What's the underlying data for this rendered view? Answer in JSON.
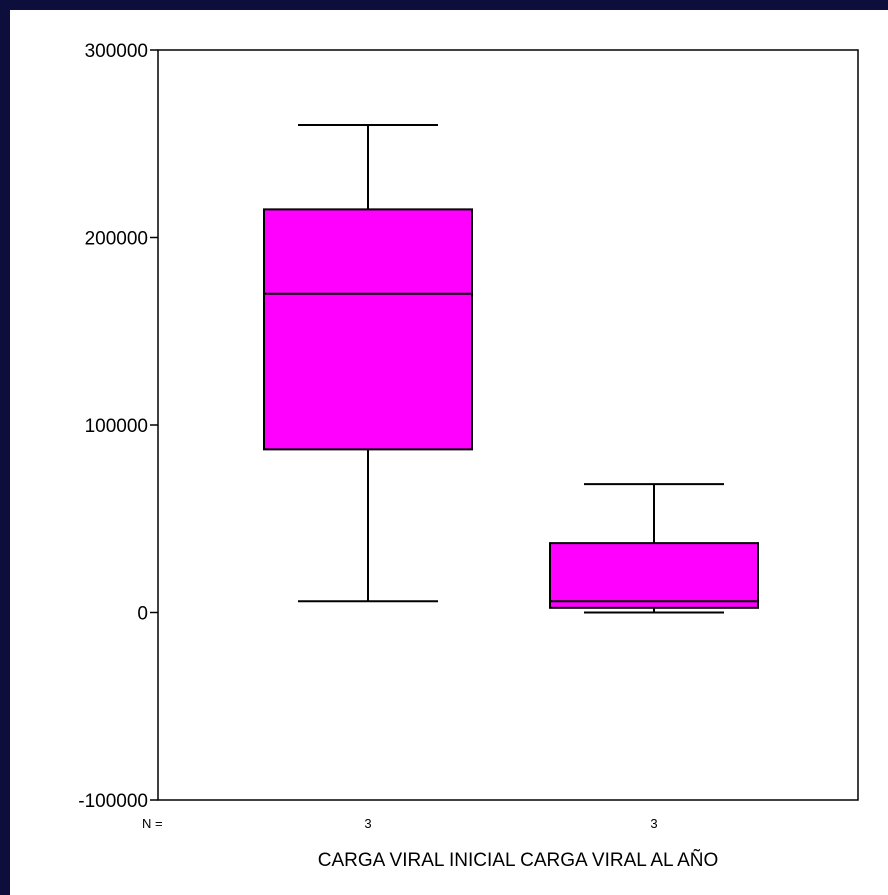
{
  "chart_data": {
    "type": "boxplot",
    "title": "",
    "xlabel": "CARGA VIRAL INICIAL CARGA VIRAL AL AÑO",
    "ylabel": "",
    "ylim": [
      -100000,
      300000
    ],
    "yticks": [
      -100000,
      0,
      100000,
      200000,
      300000
    ],
    "ytick_labels": [
      "-100000",
      "0",
      "100000",
      "200000",
      "300000"
    ],
    "grid": false,
    "n_prefix": "N =",
    "box_color": "#ff00ff",
    "line_color": "#000000",
    "categories": [
      "CARGA VIRAL INICIAL",
      "CARGA VIRAL AL AÑO"
    ],
    "series": [
      {
        "min": 6000,
        "q1": 87000,
        "median": 170000,
        "q3": 215000,
        "max": 260000,
        "n": "3"
      },
      {
        "min": 0,
        "q1": 2500,
        "median": 6000,
        "q3": 37000,
        "max": 68500,
        "n": "3"
      }
    ]
  }
}
